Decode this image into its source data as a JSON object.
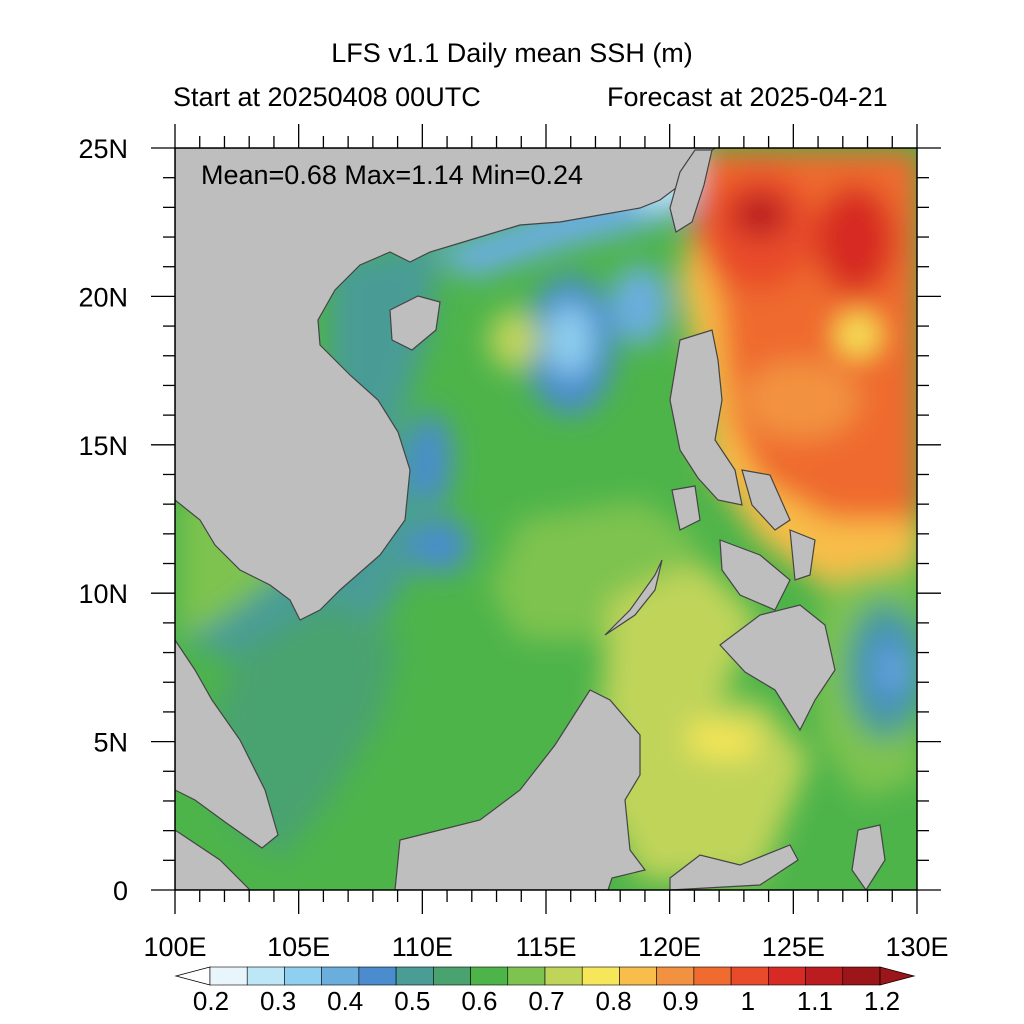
{
  "header": {
    "title": "LFS v1.1 Daily mean SSH (m)",
    "start": "Start at 20250408 00UTC",
    "forecast": "Forecast at 2025-04-21"
  },
  "stats": {
    "text": "Mean=0.68  Max=1.14  Min=0.24"
  },
  "axes": {
    "lon_ticks": [
      "100E",
      "105E",
      "110E",
      "115E",
      "120E",
      "125E",
      "130E"
    ],
    "lat_ticks": [
      "25N",
      "20N",
      "15N",
      "10N",
      "5N",
      "0"
    ],
    "lon_range": [
      100,
      130
    ],
    "lat_range": [
      0,
      25
    ]
  },
  "colorbar": {
    "labels": [
      "0.2",
      "0.3",
      "0.4",
      "0.5",
      "0.6",
      "0.7",
      "0.8",
      "0.9",
      "1",
      "1.1",
      "1.2"
    ],
    "colors": [
      "#e8f6fb",
      "#bde6f6",
      "#8fd0f0",
      "#6aaede",
      "#4a8cce",
      "#4a9c96",
      "#4aa36f",
      "#4db44a",
      "#7ec350",
      "#c0d45a",
      "#f6e659",
      "#f8bd4a",
      "#f29240",
      "#ef6b2f",
      "#e84b2a",
      "#d72a24",
      "#ba1c20",
      "#9b1519"
    ]
  },
  "colors": {
    "land": "#bebebe",
    "coast": "#444444",
    "ocean_base": "#4db44a"
  }
}
